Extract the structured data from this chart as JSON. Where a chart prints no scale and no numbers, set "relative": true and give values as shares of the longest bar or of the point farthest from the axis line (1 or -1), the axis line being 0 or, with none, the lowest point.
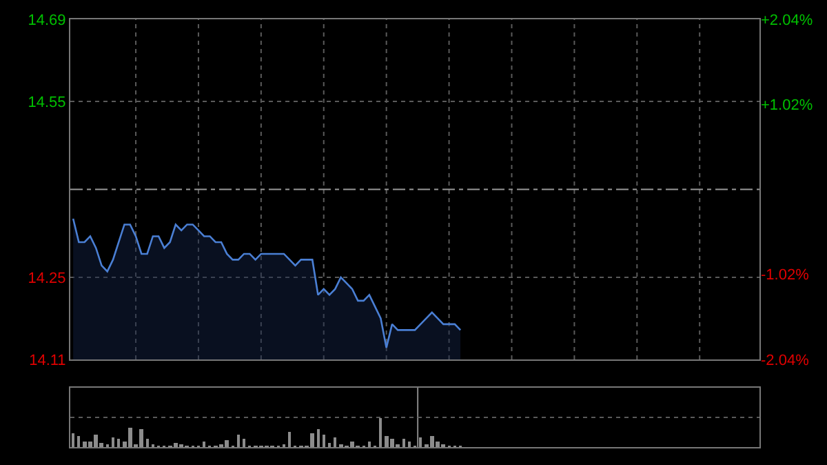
{
  "chart_data": [
    {
      "type": "area",
      "categories": [
        null,
        null,
        null,
        null,
        null,
        null,
        null,
        null,
        null,
        null,
        null,
        null,
        null,
        null,
        null,
        null,
        null,
        null,
        null,
        null,
        null,
        null,
        null,
        null,
        null,
        null,
        null,
        null,
        null,
        null,
        null,
        null,
        null,
        null,
        null,
        null,
        null,
        null,
        null,
        null,
        null,
        null,
        null,
        null,
        null,
        null,
        null,
        null,
        null,
        null,
        null,
        null,
        null,
        null,
        null,
        null,
        null,
        null,
        null,
        null,
        null,
        null,
        null,
        null,
        null,
        null,
        null,
        null,
        null,
        null,
        null,
        null,
        null,
        null,
        null,
        null,
        null,
        null,
        null,
        null,
        null,
        null,
        null,
        null,
        null,
        null,
        null,
        null,
        null,
        null,
        null,
        null,
        null,
        null,
        null,
        null,
        null,
        null,
        null,
        null,
        null,
        null,
        null,
        null,
        null,
        null,
        null,
        null,
        null,
        null,
        null,
        null,
        null,
        null,
        null,
        null,
        null,
        null,
        null,
        null,
        null
      ],
      "ylim": [
        14.11,
        14.69
      ],
      "yticks": [
        14.11,
        14.25,
        14.55,
        14.69
      ],
      "y2lim": [
        -2.04,
        2.04
      ],
      "y2ticks": [
        {
          "value": -2.04,
          "label": "-2.04%"
        },
        {
          "value": -1.02,
          "label": "-1.02%"
        },
        {
          "value": 1.02,
          "label": "+1.02%"
        },
        {
          "value": 2.04,
          "label": "+2.04%"
        }
      ],
      "grid": true,
      "tick_labels": "y",
      "ref_lines": [
        {
          "axis": "y",
          "value": 14.4,
          "label": null,
          "line_style": "dashed"
        }
      ],
      "series": [
        {
          "color": "#4a7fd4",
          "values": [
            14.35,
            14.31,
            14.31,
            14.32,
            14.3,
            14.27,
            14.26,
            14.28,
            14.31,
            14.34,
            14.34,
            14.32,
            14.29,
            14.29,
            14.32,
            14.32,
            14.3,
            14.31,
            14.34,
            14.33,
            14.34,
            14.34,
            14.33,
            14.32,
            14.32,
            14.31,
            14.31,
            14.29,
            14.28,
            14.28,
            14.29,
            14.29,
            14.28,
            14.29,
            14.29,
            14.29,
            14.29,
            14.29,
            14.28,
            14.27,
            14.28,
            14.28,
            14.28,
            14.22,
            14.23,
            14.22,
            14.23,
            14.25,
            14.24,
            14.23,
            14.21,
            14.21,
            14.22,
            14.2,
            14.18,
            14.13,
            14.17,
            14.16,
            14.16,
            14.16,
            14.16,
            14.17,
            14.18,
            14.19,
            14.18,
            14.17,
            14.17,
            14.17,
            14.16,
            null,
            null,
            null,
            null,
            null,
            null,
            null,
            null,
            null,
            null,
            null,
            null,
            null,
            null,
            null,
            null,
            null,
            null,
            null,
            null,
            null,
            null,
            null,
            null,
            null,
            null,
            null,
            null,
            null,
            null,
            null,
            null,
            null,
            null,
            null,
            null,
            null,
            null,
            null,
            null,
            null,
            null,
            null,
            null,
            null,
            null,
            null,
            null,
            null,
            null,
            null,
            null
          ]
        }
      ]
    },
    {
      "type": "bar",
      "relative": true,
      "grid": true,
      "tick_labels": false,
      "categories": [
        null,
        null,
        null,
        null,
        null,
        null,
        null,
        null,
        null,
        null,
        null,
        null,
        null,
        null,
        null,
        null,
        null,
        null,
        null,
        null,
        null,
        null,
        null,
        null,
        null,
        null,
        null,
        null,
        null,
        null,
        null,
        null,
        null,
        null,
        null,
        null,
        null,
        null,
        null,
        null,
        null,
        null,
        null,
        null,
        null,
        null,
        null,
        null,
        null,
        null,
        null,
        null,
        null,
        null,
        null,
        null,
        null,
        null,
        null,
        null,
        null,
        null,
        null,
        null,
        null,
        null,
        null,
        null,
        null,
        null,
        null,
        null,
        null,
        null,
        null,
        null,
        null,
        null,
        null,
        null,
        null,
        null,
        null,
        null,
        null,
        null,
        null,
        null,
        null,
        null,
        null,
        null,
        null,
        null,
        null,
        null,
        null,
        null,
        null,
        null,
        null,
        null,
        null,
        null,
        null,
        null,
        null,
        null,
        null,
        null,
        null,
        null,
        null,
        null,
        null,
        null,
        null,
        null,
        null,
        null,
        null
      ],
      "series": [
        {
          "color": "#8c8c8c",
          "values": [
            0.47,
            0.36,
            0.2,
            0.2,
            0.4,
            0.15,
            0.1,
            0.31,
            0.26,
            0.2,
            0.64,
            0.1,
            0.61,
            0.26,
            0.08,
            0.06,
            0.06,
            0.05,
            0.14,
            0.08,
            0.04,
            0.05,
            0.04,
            0.17,
            0.05,
            0.04,
            0.11,
            0.23,
            0.06,
            0.43,
            0.26,
            0.05,
            0.05,
            0.04,
            0.04,
            0.04,
            0.06,
            0.1,
            0.5,
            0.05,
            0.05,
            0.04,
            0.47,
            0.6,
            0.43,
            0.15,
            0.31,
            0.08,
            0.05,
            0.21,
            0.07,
            0.05,
            0.17,
            0.05,
            1,
            0.36,
            0.29,
            0.08,
            0.26,
            0.21,
            0.06,
            0.31,
            0.1,
            0.39,
            0.17,
            0.11,
            0.05,
            0.04,
            0.04,
            null,
            null,
            null,
            null,
            null,
            null,
            null,
            null,
            null,
            null,
            null,
            null,
            null,
            null,
            null,
            null,
            null,
            null,
            null,
            null,
            null,
            null,
            null,
            null,
            null,
            null,
            null,
            null,
            null,
            null,
            null,
            null,
            null,
            null,
            null,
            null,
            null,
            null,
            null,
            null,
            null,
            null,
            null,
            null,
            null,
            null,
            null,
            null,
            null,
            null,
            null,
            null
          ]
        }
      ]
    }
  ]
}
